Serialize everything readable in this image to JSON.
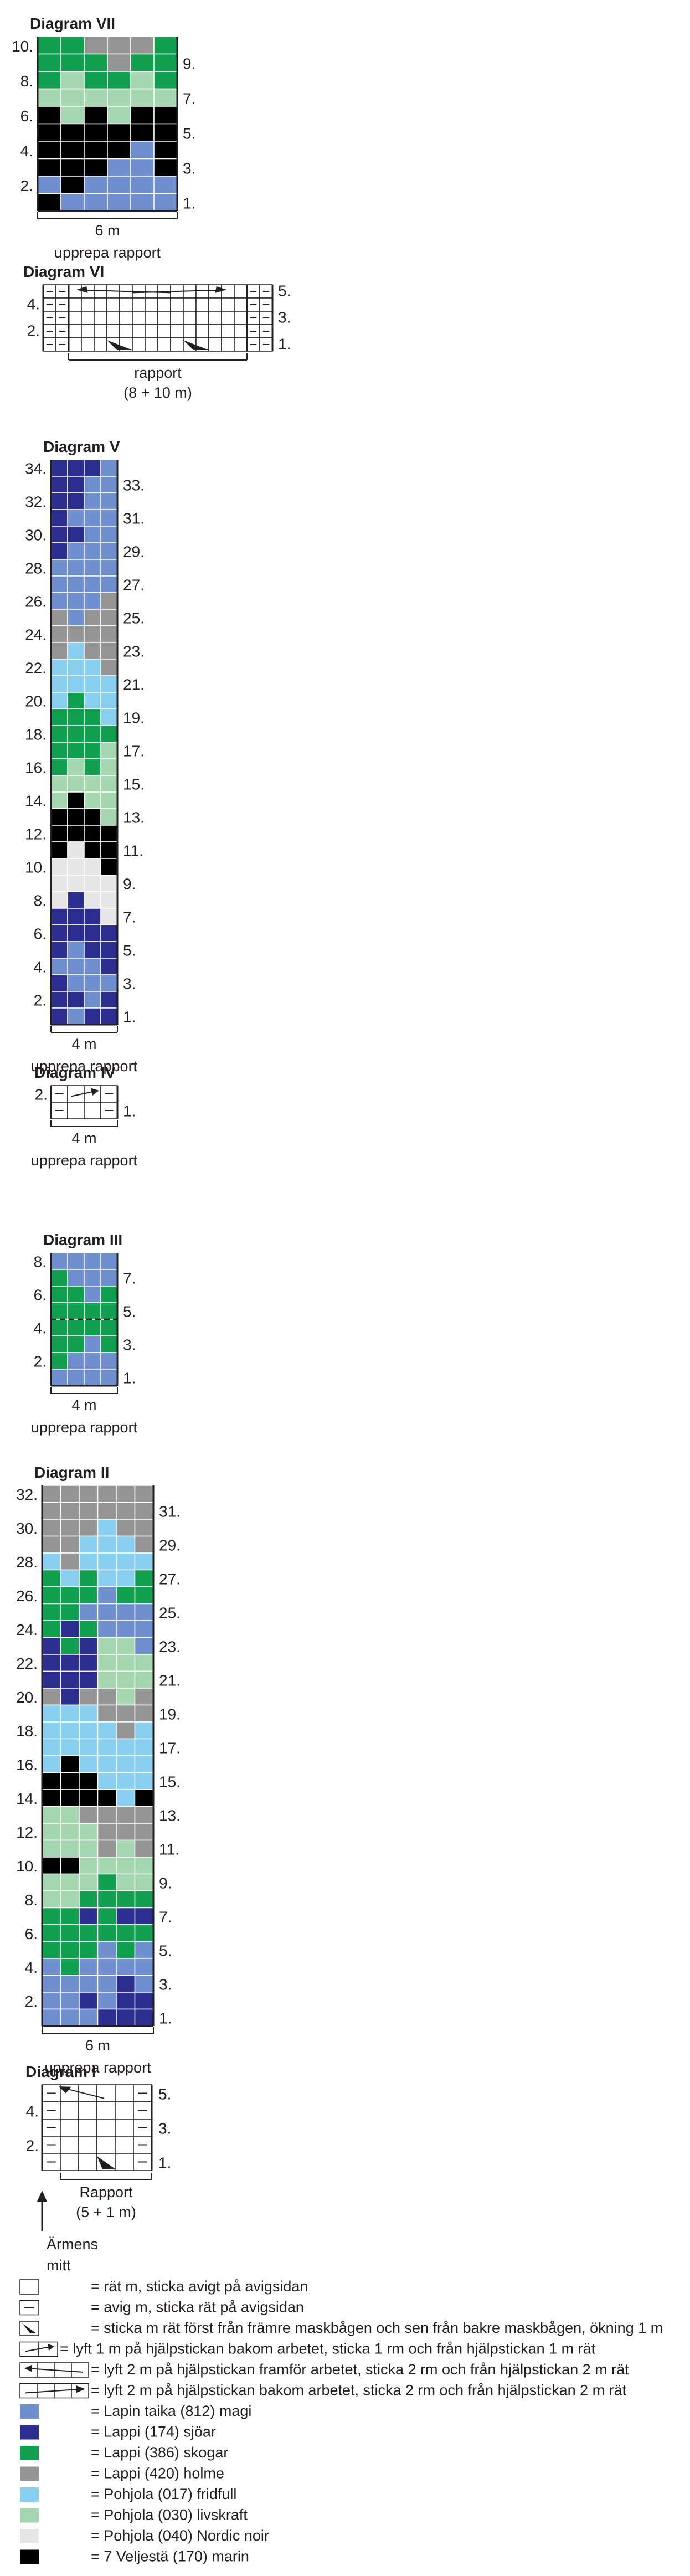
{
  "colors": {
    "blue": "#6f8fcf",
    "navy": "#2b2e8f",
    "green": "#10a050",
    "grey": "#959595",
    "sky": "#88cff0",
    "mint": "#a5d8b0",
    "light": "#e6e6e6",
    "black": "#000000",
    "white": "#ffffff"
  },
  "diagrams": [
    {
      "title": "Diagram VII",
      "caption": "upprepa rapport",
      "width_label": "6 m",
      "left_numbers": [
        "10.",
        "8.",
        "6.",
        "4.",
        "2."
      ],
      "right_numbers": [
        "9.",
        "7.",
        "5.",
        "3.",
        "1."
      ],
      "rows": [
        [
          "green",
          "green",
          "grey",
          "grey",
          "grey",
          "green"
        ],
        [
          "green",
          "green",
          "green",
          "grey",
          "green",
          "green"
        ],
        [
          "green",
          "mint",
          "green",
          "green",
          "mint",
          "green"
        ],
        [
          "mint",
          "mint",
          "mint",
          "mint",
          "mint",
          "mint"
        ],
        [
          "black",
          "mint",
          "black",
          "mint",
          "black",
          "black"
        ],
        [
          "black",
          "black",
          "black",
          "black",
          "black",
          "black"
        ],
        [
          "black",
          "black",
          "black",
          "black",
          "blue",
          "black"
        ],
        [
          "black",
          "black",
          "black",
          "blue",
          "blue",
          "black"
        ],
        [
          "blue",
          "black",
          "blue",
          "blue",
          "blue",
          "blue"
        ],
        [
          "black",
          "blue",
          "blue",
          "blue",
          "blue",
          "blue"
        ]
      ]
    },
    {
      "title": "Diagram VI",
      "caption": "rapport",
      "caption2": "(8 + 10 m)",
      "left_numbers": [
        "4.",
        "2."
      ],
      "right_numbers": [
        "5.",
        "3.",
        "1."
      ]
    },
    {
      "title": "Diagram V",
      "caption": "upprepa rapport",
      "width_label": "4 m",
      "left_numbers": [
        "34.",
        "32.",
        "30.",
        "28.",
        "26.",
        "24.",
        "22.",
        "20.",
        "18.",
        "16.",
        "14.",
        "12.",
        "10.",
        "8.",
        "6.",
        "4.",
        "2."
      ],
      "right_numbers": [
        "33.",
        "31.",
        "29.",
        "27.",
        "25.",
        "23.",
        "21.",
        "19.",
        "17.",
        "15.",
        "13.",
        "11.",
        "9.",
        "7.",
        "5.",
        "3.",
        "1."
      ],
      "rows": [
        [
          "navy",
          "navy",
          "navy",
          "blue"
        ],
        [
          "navy",
          "navy",
          "blue",
          "blue"
        ],
        [
          "navy",
          "navy",
          "blue",
          "blue"
        ],
        [
          "navy",
          "blue",
          "blue",
          "blue"
        ],
        [
          "navy",
          "navy",
          "blue",
          "blue"
        ],
        [
          "navy",
          "blue",
          "blue",
          "blue"
        ],
        [
          "blue",
          "blue",
          "blue",
          "blue"
        ],
        [
          "blue",
          "blue",
          "blue",
          "blue"
        ],
        [
          "blue",
          "blue",
          "blue",
          "grey"
        ],
        [
          "grey",
          "blue",
          "grey",
          "grey"
        ],
        [
          "grey",
          "grey",
          "grey",
          "grey"
        ],
        [
          "grey",
          "sky",
          "grey",
          "grey"
        ],
        [
          "sky",
          "sky",
          "sky",
          "grey"
        ],
        [
          "sky",
          "sky",
          "sky",
          "sky"
        ],
        [
          "sky",
          "green",
          "sky",
          "sky"
        ],
        [
          "green",
          "green",
          "green",
          "sky"
        ],
        [
          "green",
          "green",
          "green",
          "green"
        ],
        [
          "green",
          "green",
          "green",
          "mint"
        ],
        [
          "green",
          "mint",
          "green",
          "mint"
        ],
        [
          "mint",
          "mint",
          "mint",
          "mint"
        ],
        [
          "mint",
          "black",
          "mint",
          "mint"
        ],
        [
          "black",
          "black",
          "black",
          "mint"
        ],
        [
          "black",
          "black",
          "black",
          "black"
        ],
        [
          "black",
          "light",
          "black",
          "black"
        ],
        [
          "light",
          "light",
          "light",
          "black"
        ],
        [
          "light",
          "light",
          "light",
          "light"
        ],
        [
          "light",
          "navy",
          "light",
          "light"
        ],
        [
          "navy",
          "navy",
          "navy",
          "light"
        ],
        [
          "navy",
          "navy",
          "navy",
          "navy"
        ],
        [
          "navy",
          "blue",
          "navy",
          "navy"
        ],
        [
          "blue",
          "blue",
          "blue",
          "navy"
        ],
        [
          "navy",
          "blue",
          "blue",
          "blue"
        ],
        [
          "navy",
          "navy",
          "blue",
          "navy"
        ],
        [
          "navy",
          "blue",
          "navy",
          "navy"
        ]
      ]
    },
    {
      "title": "Diagram IV",
      "caption": "upprepa rapport",
      "width_label": "4 m",
      "left_numbers": [
        "2."
      ],
      "right_numbers": [
        "1."
      ]
    },
    {
      "title": "Diagram III",
      "caption": "upprepa rapport",
      "width_label": "4 m",
      "left_numbers": [
        "8.",
        "6.",
        "4.",
        "2."
      ],
      "right_numbers": [
        "7.",
        "5.",
        "3.",
        "1."
      ],
      "rows": [
        [
          "blue",
          "blue",
          "blue",
          "blue"
        ],
        [
          "green",
          "blue",
          "blue",
          "blue"
        ],
        [
          "green",
          "green",
          "blue",
          "green"
        ],
        [
          "green",
          "green",
          "green",
          "green"
        ],
        [
          "green",
          "green",
          "green",
          "green"
        ],
        [
          "green",
          "green",
          "blue",
          "green"
        ],
        [
          "green",
          "blue",
          "blue",
          "blue"
        ],
        [
          "blue",
          "blue",
          "blue",
          "blue"
        ]
      ]
    },
    {
      "title": "Diagram II",
      "caption": "upprepa rapport",
      "width_label": "6 m",
      "left_numbers": [
        "32.",
        "30.",
        "28.",
        "26.",
        "24.",
        "22.",
        "20.",
        "18.",
        "16.",
        "14.",
        "12.",
        "10.",
        "8.",
        "6.",
        "4.",
        "2."
      ],
      "right_numbers": [
        "31.",
        "29.",
        "27.",
        "25.",
        "23.",
        "21.",
        "19.",
        "17.",
        "15.",
        "13.",
        "11.",
        "9.",
        "7.",
        "5.",
        "3.",
        "1."
      ],
      "rows": [
        [
          "grey",
          "grey",
          "grey",
          "grey",
          "grey",
          "grey"
        ],
        [
          "grey",
          "grey",
          "grey",
          "grey",
          "grey",
          "grey"
        ],
        [
          "grey",
          "grey",
          "grey",
          "sky",
          "grey",
          "grey"
        ],
        [
          "grey",
          "grey",
          "sky",
          "sky",
          "sky",
          "grey"
        ],
        [
          "sky",
          "grey",
          "sky",
          "sky",
          "sky",
          "sky"
        ],
        [
          "green",
          "sky",
          "green",
          "sky",
          "sky",
          "green"
        ],
        [
          "green",
          "green",
          "green",
          "blue",
          "green",
          "green"
        ],
        [
          "green",
          "green",
          "blue",
          "blue",
          "blue",
          "blue"
        ],
        [
          "green",
          "navy",
          "green",
          "blue",
          "blue",
          "blue"
        ],
        [
          "navy",
          "green",
          "navy",
          "mint",
          "mint",
          "blue"
        ],
        [
          "navy",
          "navy",
          "navy",
          "mint",
          "mint",
          "mint"
        ],
        [
          "navy",
          "navy",
          "navy",
          "mint",
          "mint",
          "mint"
        ],
        [
          "grey",
          "navy",
          "grey",
          "grey",
          "mint",
          "grey"
        ],
        [
          "sky",
          "sky",
          "sky",
          "grey",
          "grey",
          "grey"
        ],
        [
          "sky",
          "sky",
          "sky",
          "sky",
          "grey",
          "sky"
        ],
        [
          "sky",
          "sky",
          "sky",
          "sky",
          "sky",
          "sky"
        ],
        [
          "sky",
          "black",
          "sky",
          "sky",
          "sky",
          "sky"
        ],
        [
          "black",
          "black",
          "black",
          "sky",
          "sky",
          "sky"
        ],
        [
          "black",
          "black",
          "black",
          "black",
          "sky",
          "black"
        ],
        [
          "mint",
          "mint",
          "grey",
          "grey",
          "grey",
          "grey"
        ],
        [
          "mint",
          "mint",
          "mint",
          "grey",
          "grey",
          "grey"
        ],
        [
          "mint",
          "mint",
          "mint",
          "grey",
          "mint",
          "grey"
        ],
        [
          "black",
          "black",
          "mint",
          "mint",
          "mint",
          "mint"
        ],
        [
          "mint",
          "mint",
          "mint",
          "green",
          "mint",
          "mint"
        ],
        [
          "mint",
          "mint",
          "green",
          "green",
          "green",
          "green"
        ],
        [
          "green",
          "green",
          "navy",
          "green",
          "navy",
          "navy"
        ],
        [
          "green",
          "green",
          "green",
          "green",
          "green",
          "green"
        ],
        [
          "green",
          "green",
          "green",
          "blue",
          "green",
          "blue"
        ],
        [
          "blue",
          "green",
          "blue",
          "blue",
          "blue",
          "blue"
        ],
        [
          "blue",
          "blue",
          "blue",
          "blue",
          "navy",
          "blue"
        ],
        [
          "blue",
          "blue",
          "navy",
          "blue",
          "navy",
          "navy"
        ],
        [
          "blue",
          "blue",
          "blue",
          "navy",
          "navy",
          "navy"
        ]
      ]
    },
    {
      "title": "Diagram I",
      "caption": "Rapport",
      "caption2": "(5 + 1 m)",
      "left_numbers": [
        "4.",
        "2."
      ],
      "right_numbers": [
        "5.",
        "3.",
        "1."
      ],
      "arrow_label": "Ärmens",
      "arrow_label2": "mitt"
    }
  ],
  "legend": [
    {
      "symbol": "knit",
      "text": "= rät m, sticka avigt på avigsidan"
    },
    {
      "symbol": "purl",
      "text": "= avig m, sticka rät på avigsidan"
    },
    {
      "symbol": "increase",
      "text": "= sticka m rät först från främre maskbågen och sen från bakre maskbågen, ökning 1 m"
    },
    {
      "symbol": "cable1",
      "text": "= lyft 1 m på hjälpstickan bakom arbetet, sticka 1 rm och från hjälpstickan 1 m rät"
    },
    {
      "symbol": "cable2f",
      "text": "= lyft 2 m på hjälpstickan framför arbetet, sticka 2 rm och från hjälpstickan 2 m rät"
    },
    {
      "symbol": "cable2b",
      "text": "= lyft 2 m på hjälpstickan bakom arbetet, sticka 2 rm och från hjälpstickan 2 m rät"
    },
    {
      "symbol": "blue",
      "text": "= Lapin taika (812) magi"
    },
    {
      "symbol": "navy",
      "text": "= Lappi (174) sjöar"
    },
    {
      "symbol": "green",
      "text": "= Lappi (386) skogar"
    },
    {
      "symbol": "grey",
      "text": "= Lappi (420) holme"
    },
    {
      "symbol": "sky",
      "text": "= Pohjola (017) fridfull"
    },
    {
      "symbol": "mint",
      "text": "= Pohjola (030) livskraft"
    },
    {
      "symbol": "light",
      "text": "= Pohjola (040) Nordic noir"
    },
    {
      "symbol": "black",
      "text": "= 7 Veljestä (170) marin"
    }
  ]
}
